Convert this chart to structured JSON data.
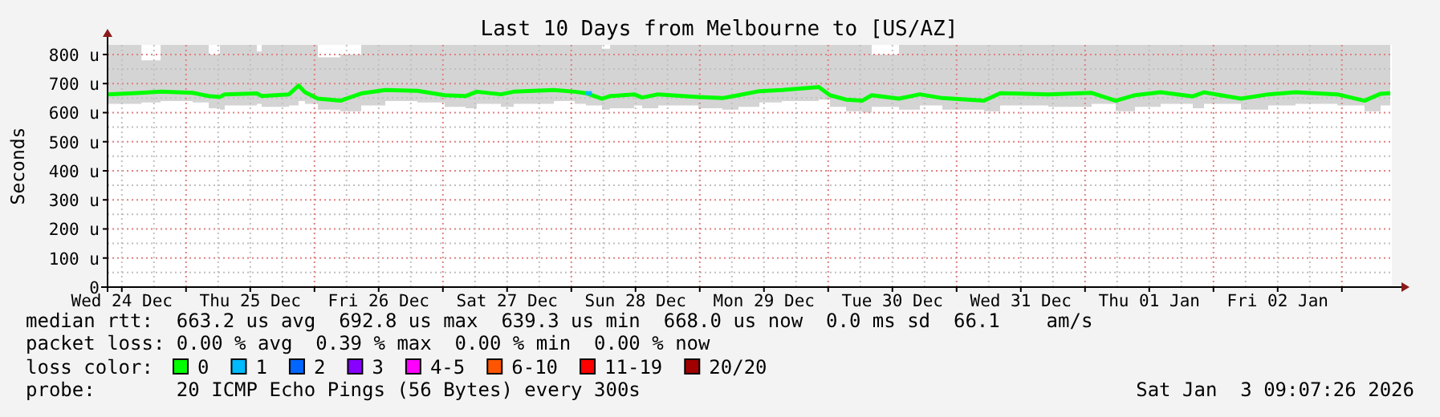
{
  "chart_data": {
    "type": "line",
    "title": "Last 10 Days from Melbourne to [US/AZ]",
    "ylabel": "Seconds",
    "xlim": [
      "2025-12-24T09:20",
      "2026-01-03T09:20"
    ],
    "xticks": [
      {
        "value": "2025-12-24T12:00",
        "label": "Wed 24 Dec"
      },
      {
        "value": "2025-12-25T00:00",
        "label": null
      },
      {
        "value": "2025-12-25T12:00",
        "label": "Thu 25 Dec"
      },
      {
        "value": "2025-12-26T00:00",
        "label": null
      },
      {
        "value": "2025-12-26T12:00",
        "label": "Fri 26 Dec"
      },
      {
        "value": "2025-12-27T00:00",
        "label": null
      },
      {
        "value": "2025-12-27T12:00",
        "label": "Sat 27 Dec"
      },
      {
        "value": "2025-12-28T00:00",
        "label": null
      },
      {
        "value": "2025-12-28T12:00",
        "label": "Sun 28 Dec"
      },
      {
        "value": "2025-12-29T00:00",
        "label": null
      },
      {
        "value": "2025-12-29T12:00",
        "label": "Mon 29 Dec"
      },
      {
        "value": "2025-12-30T00:00",
        "label": null
      },
      {
        "value": "2025-12-30T12:00",
        "label": "Tue 30 Dec"
      },
      {
        "value": "2025-12-31T00:00",
        "label": null
      },
      {
        "value": "2025-12-31T12:00",
        "label": "Wed 31 Dec"
      },
      {
        "value": "2026-01-01T00:00",
        "label": null
      },
      {
        "value": "2026-01-01T12:00",
        "label": "Thu 01 Jan"
      },
      {
        "value": "2026-01-02T00:00",
        "label": null
      },
      {
        "value": "2026-01-02T12:00",
        "label": "Fri 02 Jan"
      },
      {
        "value": "2026-01-03T00:00",
        "label": null
      }
    ],
    "ylim": [
      0,
      833
    ],
    "yticks": [
      0,
      {
        "value": 100,
        "label": "100 u"
      },
      {
        "value": 200,
        "label": "200 u"
      },
      {
        "value": 300,
        "label": "300 u"
      },
      {
        "value": 400,
        "label": "400 u"
      },
      {
        "value": 500,
        "label": "500 u"
      },
      {
        "value": 600,
        "label": "600 u"
      },
      {
        "value": 700,
        "label": "700 u"
      },
      {
        "value": 800,
        "label": "800 u"
      }
    ],
    "grid": true,
    "legend": "bottom",
    "legend_title": "loss color:",
    "marker": "none",
    "line_style": "solid",
    "series": [
      {
        "name": "0",
        "color": "#00ff00",
        "x": [
          "2025-12-24T09:20",
          "2025-12-24T15:40",
          "2025-12-24T19:15",
          "2025-12-25T01:14",
          "2025-12-25T04:14",
          "2025-12-25T06:20",
          "2025-12-25T07:14",
          "2025-12-25T13:14",
          "2025-12-25T14:08",
          "2025-12-25T19:14",
          "2025-12-25T21:02",
          "2025-12-25T22:14",
          "2025-12-26T00:38",
          "2025-12-26T04:50",
          "2025-12-26T08:44",
          "2025-12-26T13:14",
          "2025-12-26T19:14",
          "2025-12-27T00:20",
          "2025-12-27T04:14",
          "2025-12-27T06:20",
          "2025-12-27T10:50",
          "2025-12-27T13:14",
          "2025-12-27T20:44",
          "2025-12-28T00:38",
          "2025-12-28T02:44",
          "2025-12-28T05:44",
          "2025-12-28T07:14",
          "2025-12-28T11:44",
          "2025-12-28T13:14",
          "2025-12-28T16:14",
          "2025-12-28T23:44",
          "2025-12-29T04:14",
          "2025-12-29T07:14",
          "2025-12-29T11:08",
          "2025-12-29T15:20",
          "2025-12-29T22:14",
          "2025-12-30T00:20",
          "2025-12-30T03:20",
          "2025-12-30T06:20",
          "2025-12-30T08:08",
          "2025-12-30T13:14",
          "2025-12-30T17:08",
          "2025-12-30T21:20",
          "2025-12-31T05:08",
          "2025-12-31T08:08",
          "2025-12-31T17:08",
          "2026-01-01T01:14",
          "2026-01-01T05:44",
          "2026-01-01T09:20",
          "2026-01-01T14:08",
          "2026-01-01T20:08",
          "2026-01-01T22:14",
          "2026-01-02T05:08",
          "2026-01-02T10:14",
          "2026-01-02T15:20",
          "2026-01-02T23:08",
          "2026-01-03T04:14",
          "2026-01-03T07:14",
          "2026-01-03T09:02"
        ],
        "values": [
          663,
          668,
          672,
          668,
          657,
          654,
          663,
          666,
          657,
          663,
          693,
          670,
          648,
          641,
          666,
          678,
          675,
          660,
          657,
          672,
          663,
          672,
          678,
          672,
          667,
          648,
          657,
          663,
          652,
          663,
          654,
          650,
          660,
          674,
          678,
          688,
          660,
          645,
          641,
          660,
          648,
          663,
          650,
          641,
          667,
          663,
          668,
          641,
          660,
          670,
          656,
          670,
          648,
          663,
          670,
          663,
          641,
          665,
          667
        ],
        "lower": [
          630,
          635,
          640,
          635,
          615,
          610,
          625,
          630,
          620,
          625,
          640,
          630,
          610,
          605,
          625,
          640,
          635,
          620,
          615,
          630,
          620,
          630,
          640,
          630,
          625,
          610,
          615,
          625,
          615,
          625,
          615,
          610,
          620,
          635,
          640,
          645,
          620,
          605,
          600,
          620,
          610,
          625,
          610,
          605,
          625,
          620,
          630,
          605,
          620,
          630,
          615,
          630,
          610,
          625,
          630,
          625,
          605,
          625,
          630
        ],
        "upper": [
          833,
          780,
          833,
          833,
          800,
          833,
          833,
          810,
          833,
          833,
          833,
          833,
          790,
          800,
          833,
          833,
          833,
          833,
          833,
          833,
          833,
          833,
          833,
          833,
          833,
          820,
          833,
          833,
          833,
          833,
          833,
          833,
          833,
          833,
          833,
          833,
          833,
          833,
          833,
          800,
          833,
          833,
          833,
          833,
          833,
          833,
          833,
          833,
          833,
          833,
          833,
          833,
          833,
          833,
          833,
          833,
          833,
          833,
          800
        ]
      },
      {
        "name": "1",
        "color": "#00bbff",
        "x": [
          "2025-12-28T02:44",
          "2025-12-28T03:50"
        ],
        "values": [
          667,
          667
        ]
      },
      {
        "name": "2",
        "color": "#0066ff"
      },
      {
        "name": "3",
        "color": "#8800ff"
      },
      {
        "name": "4-5",
        "color": "#ff00ff"
      },
      {
        "name": "6-10",
        "color": "#ff5500"
      },
      {
        "name": "11-19",
        "color": "#ff0000"
      },
      {
        "name": "20/20",
        "color": "#a10000"
      }
    ],
    "annotations": [
      "median rtt:  663.2 us avg  692.8 us max  639.3 us min  668.0 us now  0.0 ms sd  66.1    am/s",
      "packet loss: 0.00 % avg  0.39 % max  0.00 % min  0.00 % now",
      "probe:       20 ICMP Echo Pings (56 Bytes) every 300s",
      "Sat Jan  3 09:07:26 2026"
    ]
  }
}
